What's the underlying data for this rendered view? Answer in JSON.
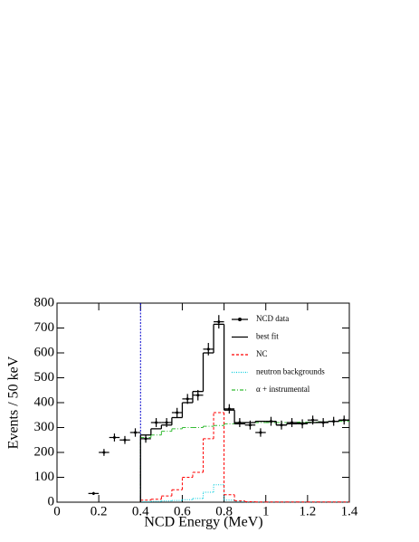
{
  "chart_data": {
    "type": "histogram",
    "x_label": "NCD Energy (MeV)",
    "y_label": "Events / 50 keV",
    "xlim": [
      0,
      1.4
    ],
    "ylim": [
      0,
      800
    ],
    "xticks": [
      0,
      0.2,
      0.4,
      0.6,
      0.8,
      1,
      1.2,
      1.4
    ],
    "yticks": [
      0,
      100,
      200,
      300,
      400,
      500,
      600,
      700,
      800
    ],
    "threshold": {
      "x": 0.4,
      "color": "#0000cc"
    },
    "legend": "upper right",
    "points": {
      "name": "NCD data",
      "color": "#000000",
      "xerr": 0.025,
      "x": [
        0.175,
        0.225,
        0.275,
        0.325,
        0.375,
        0.425,
        0.475,
        0.525,
        0.575,
        0.625,
        0.675,
        0.725,
        0.775,
        0.825,
        0.875,
        0.925,
        0.975,
        1.025,
        1.075,
        1.125,
        1.175,
        1.225,
        1.275,
        1.325,
        1.375
      ],
      "values": [
        35,
        200,
        260,
        250,
        280,
        255,
        320,
        320,
        360,
        415,
        430,
        615,
        725,
        375,
        320,
        310,
        280,
        325,
        310,
        320,
        315,
        330,
        320,
        325,
        330
      ],
      "errors": [
        6,
        14,
        16,
        16,
        17,
        16,
        18,
        18,
        19,
        20,
        21,
        25,
        27,
        19,
        18,
        18,
        17,
        18,
        18,
        18,
        18,
        18,
        18,
        18,
        18
      ]
    },
    "series": [
      {
        "name": "best fit",
        "color": "#000000",
        "style": "solid",
        "bins": [
          0.4,
          0.45,
          0.5,
          0.55,
          0.6,
          0.65,
          0.7,
          0.75,
          0.8,
          0.85,
          0.9,
          0.95,
          1.0,
          1.05,
          1.1,
          1.15,
          1.2,
          1.25,
          1.3,
          1.35,
          1.4
        ],
        "values": [
          270,
          295,
          310,
          340,
          400,
          445,
          600,
          715,
          370,
          315,
          320,
          325,
          325,
          310,
          315,
          318,
          320,
          322,
          325,
          330
        ]
      },
      {
        "name": "NC",
        "color": "#ff0000",
        "style": "dashed",
        "bins": [
          0.4,
          0.45,
          0.5,
          0.55,
          0.6,
          0.65,
          0.7,
          0.75,
          0.8,
          0.85,
          0.9,
          0.95,
          1.0,
          1.05,
          1.1,
          1.15,
          1.2,
          1.25,
          1.3,
          1.35,
          1.4
        ],
        "values": [
          8,
          12,
          25,
          50,
          100,
          120,
          255,
          360,
          30,
          5,
          2,
          1,
          1,
          1,
          1,
          1,
          1,
          1,
          1,
          1
        ]
      },
      {
        "name": "neutron backgrounds",
        "color": "#00ccdd",
        "style": "dotted",
        "bins": [
          0.4,
          0.45,
          0.5,
          0.55,
          0.6,
          0.65,
          0.7,
          0.75,
          0.8,
          0.85,
          0.9,
          0.95,
          1.0,
          1.05,
          1.1,
          1.15,
          1.2,
          1.25,
          1.3,
          1.35,
          1.4
        ],
        "values": [
          2,
          3,
          5,
          7,
          10,
          15,
          40,
          70,
          8,
          2,
          1,
          1,
          1,
          1,
          1,
          1,
          1,
          1,
          1,
          1
        ]
      },
      {
        "name": "α + instrumental",
        "color": "#33bb33",
        "style": "dashdot",
        "bins": [
          0.4,
          0.45,
          0.5,
          0.55,
          0.6,
          0.65,
          0.7,
          0.75,
          0.8,
          0.85,
          0.9,
          0.95,
          1.0,
          1.05,
          1.1,
          1.15,
          1.2,
          1.25,
          1.3,
          1.35,
          1.4
        ],
        "values": [
          260,
          270,
          285,
          295,
          300,
          300,
          305,
          308,
          315,
          318,
          320,
          320,
          320,
          320,
          320,
          322,
          322,
          323,
          325,
          325
        ]
      }
    ]
  }
}
